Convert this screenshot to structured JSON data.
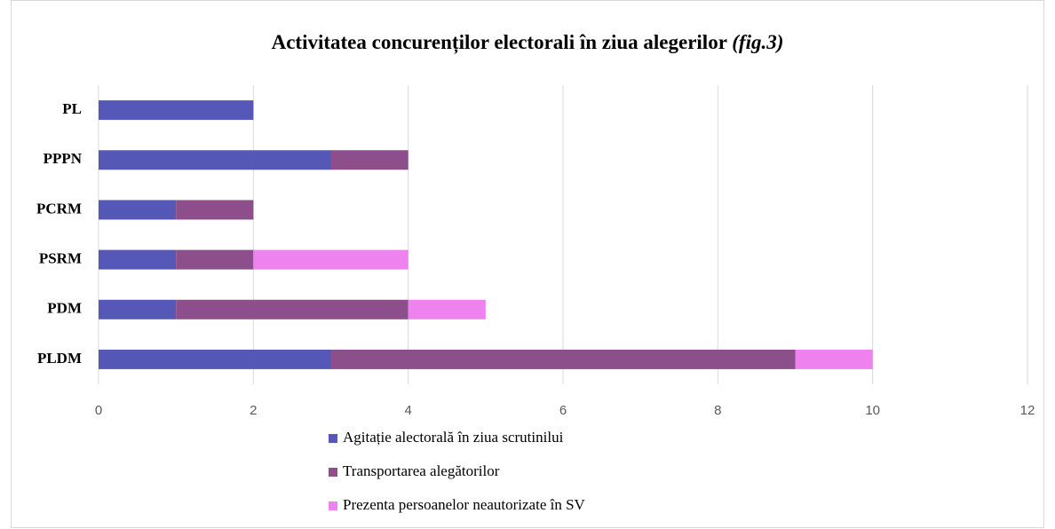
{
  "chart_data": {
    "type": "stacked_barh",
    "title": "Activitatea concurenților electorali în ziua alegerilor",
    "title_note": "(fig.3)",
    "categories": [
      "PL",
      "PPPN",
      "PCRM",
      "PSRM",
      "PDM",
      "PLDM"
    ],
    "series": [
      {
        "name": "Agitație alectorală în ziua scrutinilui",
        "color": "#5558b7",
        "values": [
          2,
          3,
          1,
          1,
          1,
          3
        ]
      },
      {
        "name": "Transportarea alegătorilor",
        "color": "#8c4f8c",
        "values": [
          0,
          1,
          1,
          1,
          3,
          6
        ]
      },
      {
        "name": "Prezenta persoanelor neautorizate în SV",
        "color": "#ee82ee",
        "values": [
          0,
          0,
          0,
          2,
          1,
          1
        ]
      }
    ],
    "xlim": [
      0,
      12
    ],
    "xticks": [
      0,
      2,
      4,
      6,
      8,
      10,
      12
    ],
    "grid": true
  }
}
